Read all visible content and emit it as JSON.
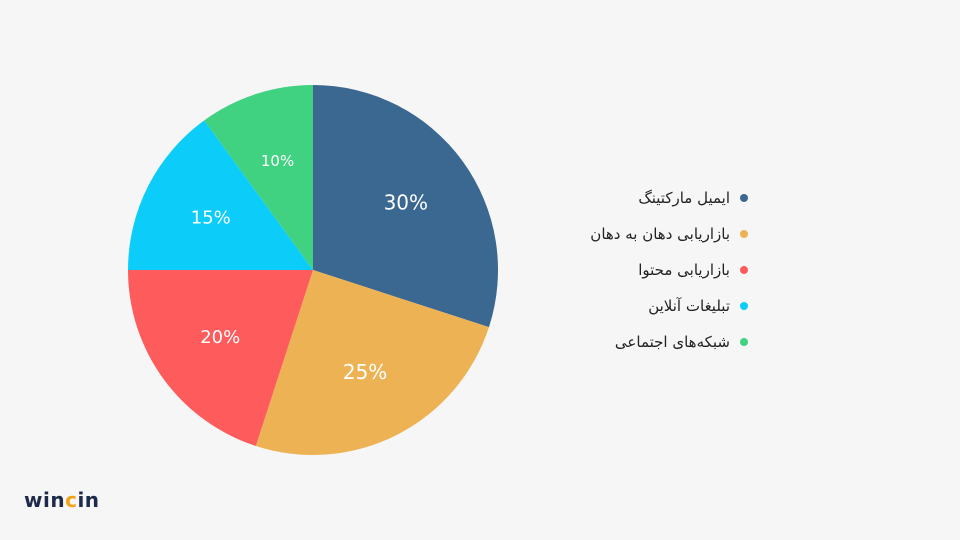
{
  "chart_data": {
    "type": "pie",
    "slices": [
      {
        "label": "ایمیل مارکتینگ",
        "value": 30,
        "display": "30%",
        "color": "#3a6891"
      },
      {
        "label": "بازاریابی دهان به دهان",
        "value": 25,
        "display": "25%",
        "color": "#edb254"
      },
      {
        "label": "بازاریابی محتوا",
        "value": 20,
        "display": "20%",
        "color": "#fd5b5c"
      },
      {
        "label": "تبلیغات آنلاین",
        "value": 15,
        "display": "15%",
        "color": "#0ccdfa"
      },
      {
        "label": "شبکه‌های اجتماعی",
        "value": 10,
        "display": "10%",
        "color": "#40d181"
      }
    ],
    "legend_position": "right"
  },
  "logo": {
    "part1": "win",
    "part2": "c",
    "part3": "in"
  }
}
